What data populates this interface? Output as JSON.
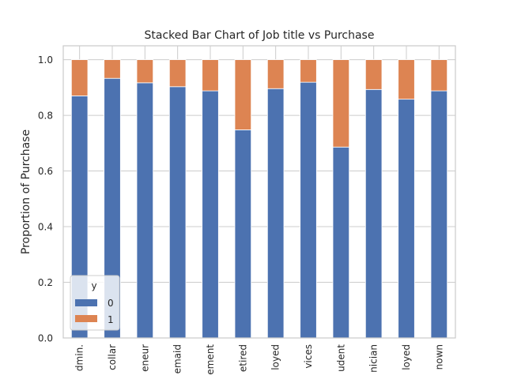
{
  "chart_data": {
    "type": "bar",
    "stacked": true,
    "title": "Stacked Bar Chart of Job title vs Purchase",
    "xlabel": "",
    "ylabel": "Proportion of Purchase",
    "ylim": [
      0,
      1.0
    ],
    "yticks": [
      "0.0",
      "0.2",
      "0.4",
      "0.6",
      "0.8",
      "1.0"
    ],
    "grid": true,
    "categories": [
      "dmin.",
      "collar",
      "eneur",
      "emaid",
      "ement",
      "etired",
      "loyed",
      "vices",
      "udent",
      "nician",
      "loyed",
      "nown"
    ],
    "series": [
      {
        "name": "0",
        "color": "#4c72b0",
        "values": [
          0.87,
          0.933,
          0.917,
          0.903,
          0.888,
          0.748,
          0.896,
          0.919,
          0.686,
          0.893,
          0.858,
          0.888
        ]
      },
      {
        "name": "1",
        "color": "#dd8452",
        "values": [
          0.13,
          0.067,
          0.083,
          0.097,
          0.112,
          0.252,
          0.104,
          0.081,
          0.314,
          0.107,
          0.142,
          0.112
        ]
      }
    ],
    "legend": {
      "title": "y",
      "placement": "lower-left"
    }
  }
}
